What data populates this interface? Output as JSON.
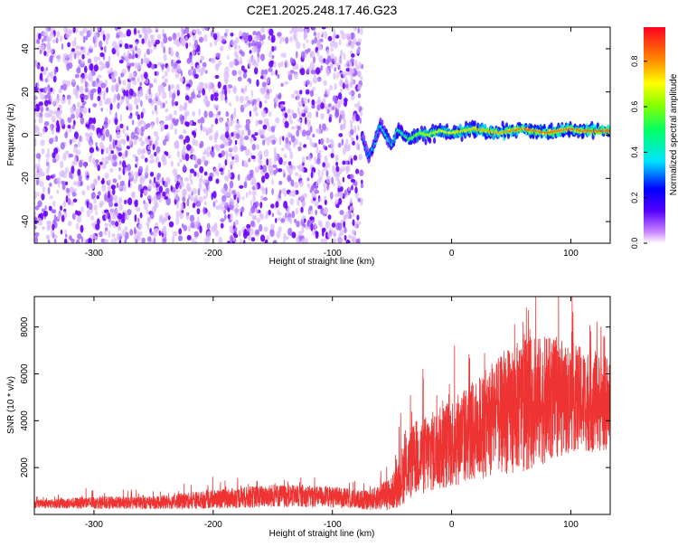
{
  "title": "C2E1.2025.248.17.46.G23",
  "chart_data": [
    {
      "type": "heatmap",
      "title": "C2E1.2025.248.17.46.G23",
      "xlabel": "Height of straight line (km)",
      "ylabel": "Frequency (Hz)",
      "xlim": [
        -350,
        133
      ],
      "ylim": [
        -50,
        50
      ],
      "xticks": [
        -300,
        -200,
        -100,
        0,
        100
      ],
      "yticks": [
        -40,
        -20,
        0,
        20,
        40
      ],
      "noise_region_x": [
        -350,
        -75
      ],
      "signal_trace": {
        "x": [
          -75,
          -70,
          -65,
          -60,
          -55,
          -50,
          -45,
          -40,
          -35,
          -30,
          -25,
          -20,
          -10,
          0,
          10,
          20,
          30,
          40,
          50,
          60,
          70,
          80,
          90,
          100,
          110,
          120,
          133
        ],
        "freq": [
          0,
          -10,
          -5,
          5,
          0,
          -5,
          3,
          0,
          -2,
          0,
          1,
          0,
          2,
          1,
          2,
          3,
          2,
          1,
          2,
          3,
          2,
          1,
          2,
          3,
          2,
          2,
          2
        ],
        "amplitude": [
          0.3,
          0.35,
          0.4,
          0.4,
          0.45,
          0.45,
          0.5,
          0.55,
          0.6,
          0.65,
          0.7,
          0.7,
          0.72,
          0.75,
          0.78,
          0.8,
          0.82,
          0.85,
          0.88,
          0.9,
          0.9,
          0.9,
          0.9,
          0.9,
          0.9,
          0.92,
          0.95
        ]
      },
      "colorbar": {
        "label": "Normalized spectral amplitude",
        "ticks": [
          "0.0",
          "0.2",
          "0.4",
          "0.6",
          "0.8"
        ],
        "range": [
          0,
          0.95
        ]
      }
    },
    {
      "type": "line",
      "xlabel": "Height of straight line (km)",
      "ylabel": "SNR (10 * v/v)",
      "xlim": [
        -350,
        133
      ],
      "ylim": [
        0,
        9300
      ],
      "xticks": [
        -300,
        -200,
        -100,
        0,
        100
      ],
      "yticks": [
        2000,
        4000,
        6000,
        8000
      ],
      "color": "#ee3333",
      "envelope": {
        "x": [
          -350,
          -300,
          -250,
          -200,
          -150,
          -100,
          -70,
          -50,
          -40,
          -30,
          -20,
          -10,
          0,
          20,
          40,
          60,
          80,
          100,
          120,
          133
        ],
        "mean": [
          450,
          500,
          500,
          650,
          800,
          750,
          600,
          900,
          1800,
          2400,
          2600,
          2800,
          3100,
          3600,
          4200,
          4700,
          4900,
          5000,
          4800,
          4700
        ],
        "spread": [
          200,
          300,
          300,
          450,
          550,
          500,
          450,
          800,
          1500,
          1800,
          1900,
          2000,
          2200,
          2400,
          2800,
          3200,
          3000,
          2600,
          2400,
          2200
        ]
      }
    }
  ]
}
